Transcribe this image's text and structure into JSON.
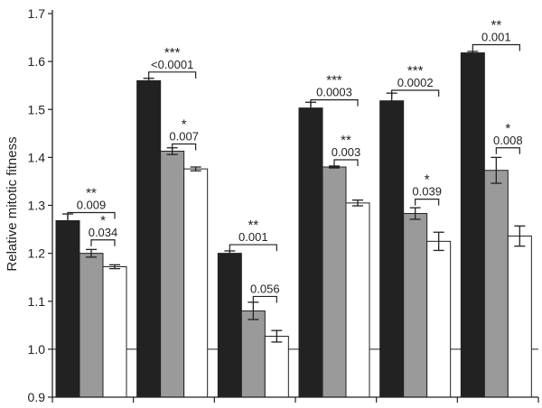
{
  "chart_data": {
    "type": "bar",
    "title": "",
    "xlabel": "",
    "ylabel": "Relative mitotic fitness",
    "ylim": [
      0.9,
      1.7
    ],
    "yticks": [
      "0.9",
      "1.0",
      "1.1",
      "1.2",
      "1.3",
      "1.4",
      "1.5",
      "1.6",
      "1.7"
    ],
    "reference_line": 1.0,
    "groups": 6,
    "series": [
      {
        "name": "dark",
        "color": "#222222",
        "values": [
          1.268,
          1.56,
          1.2,
          1.503,
          1.518,
          1.618
        ],
        "errors": [
          0.014,
          0.005,
          0.005,
          0.012,
          0.016,
          0.003
        ]
      },
      {
        "name": "grey",
        "color": "#9a9a9a",
        "values": [
          1.2,
          1.413,
          1.08,
          1.38,
          1.283,
          1.373
        ],
        "errors": [
          0.008,
          0.007,
          0.018,
          0.002,
          0.012,
          0.027
        ]
      },
      {
        "name": "white",
        "color": "#ffffff",
        "values": [
          1.172,
          1.376,
          1.027,
          1.305,
          1.225,
          1.236
        ],
        "errors": [
          0.004,
          0.004,
          0.012,
          0.006,
          0.019,
          0.021
        ]
      }
    ],
    "annotations": [
      {
        "group": 0,
        "from": 0,
        "to": 2,
        "y": 1.285,
        "stars": "**",
        "p": "0.009"
      },
      {
        "group": 0,
        "from": 1,
        "to": 2,
        "y": 1.228,
        "stars": "*",
        "p": "0.034"
      },
      {
        "group": 1,
        "from": 0,
        "to": 2,
        "y": 1.578,
        "stars": "***",
        "p": "<0.0001"
      },
      {
        "group": 1,
        "from": 1,
        "to": 2,
        "y": 1.428,
        "stars": "*",
        "p": "0.007"
      },
      {
        "group": 2,
        "from": 0,
        "to": 2,
        "y": 1.218,
        "stars": "**",
        "p": "0.001"
      },
      {
        "group": 2,
        "from": 1,
        "to": 2,
        "y": 1.11,
        "stars": "",
        "p": "0.056"
      },
      {
        "group": 3,
        "from": 0,
        "to": 2,
        "y": 1.52,
        "stars": "***",
        "p": "0.0003"
      },
      {
        "group": 3,
        "from": 1,
        "to": 2,
        "y": 1.395,
        "stars": "**",
        "p": "0.003"
      },
      {
        "group": 4,
        "from": 0,
        "to": 2,
        "y": 1.54,
        "stars": "***",
        "p": "0.0002"
      },
      {
        "group": 4,
        "from": 1,
        "to": 2,
        "y": 1.313,
        "stars": "*",
        "p": "0.039"
      },
      {
        "group": 5,
        "from": 0,
        "to": 2,
        "y": 1.635,
        "stars": "**",
        "p": "0.001"
      },
      {
        "group": 5,
        "from": 1,
        "to": 2,
        "y": 1.42,
        "stars": "*",
        "p": "0.008"
      }
    ]
  }
}
